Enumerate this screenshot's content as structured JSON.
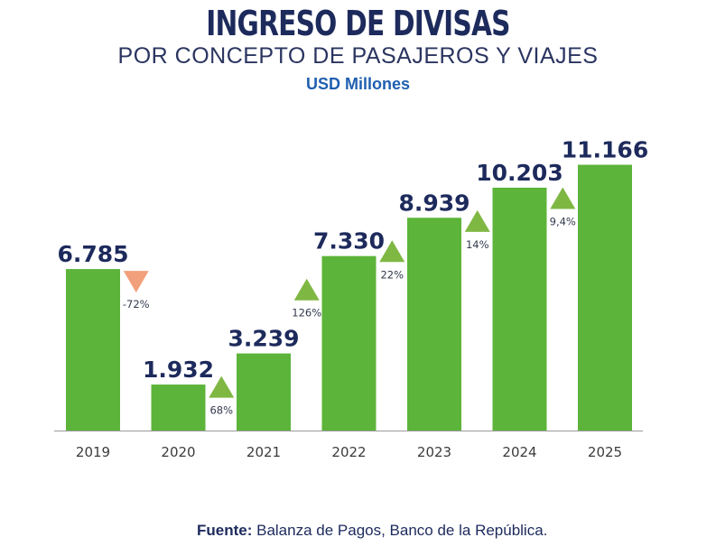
{
  "chart_data": {
    "type": "bar",
    "title": "INGRESO DE DIVISAS",
    "subtitle": "POR CONCEPTO DE PASAJEROS Y VIAJES",
    "unit": "USD Millones",
    "categories": [
      "2019",
      "2020",
      "2021",
      "2022",
      "2023",
      "2024",
      "2025"
    ],
    "values": [
      6785,
      1932,
      3239,
      7330,
      8939,
      10203,
      11166
    ],
    "value_labels": [
      "6.785",
      "1.932",
      "3.239",
      "7.330",
      "8.939",
      "10.203",
      "11.166"
    ],
    "changes": [
      {
        "label": "-72%",
        "direction": "down"
      },
      {
        "label": "68%",
        "direction": "up"
      },
      {
        "label": "126%",
        "direction": "up"
      },
      {
        "label": "22%",
        "direction": "up"
      },
      {
        "label": "14%",
        "direction": "up"
      },
      {
        "label": "9,4%",
        "direction": "up"
      }
    ],
    "ylim": [
      0,
      12400
    ],
    "grid": false,
    "legend": "none",
    "colors": {
      "bar": "#5cb43a",
      "up": "#7fb743",
      "down": "#f2a07b",
      "title": "#1d2a5c",
      "unit": "#1f5fb0"
    }
  },
  "source": {
    "label": "Fuente:",
    "text": " Balanza de Pagos, Banco de la República."
  }
}
